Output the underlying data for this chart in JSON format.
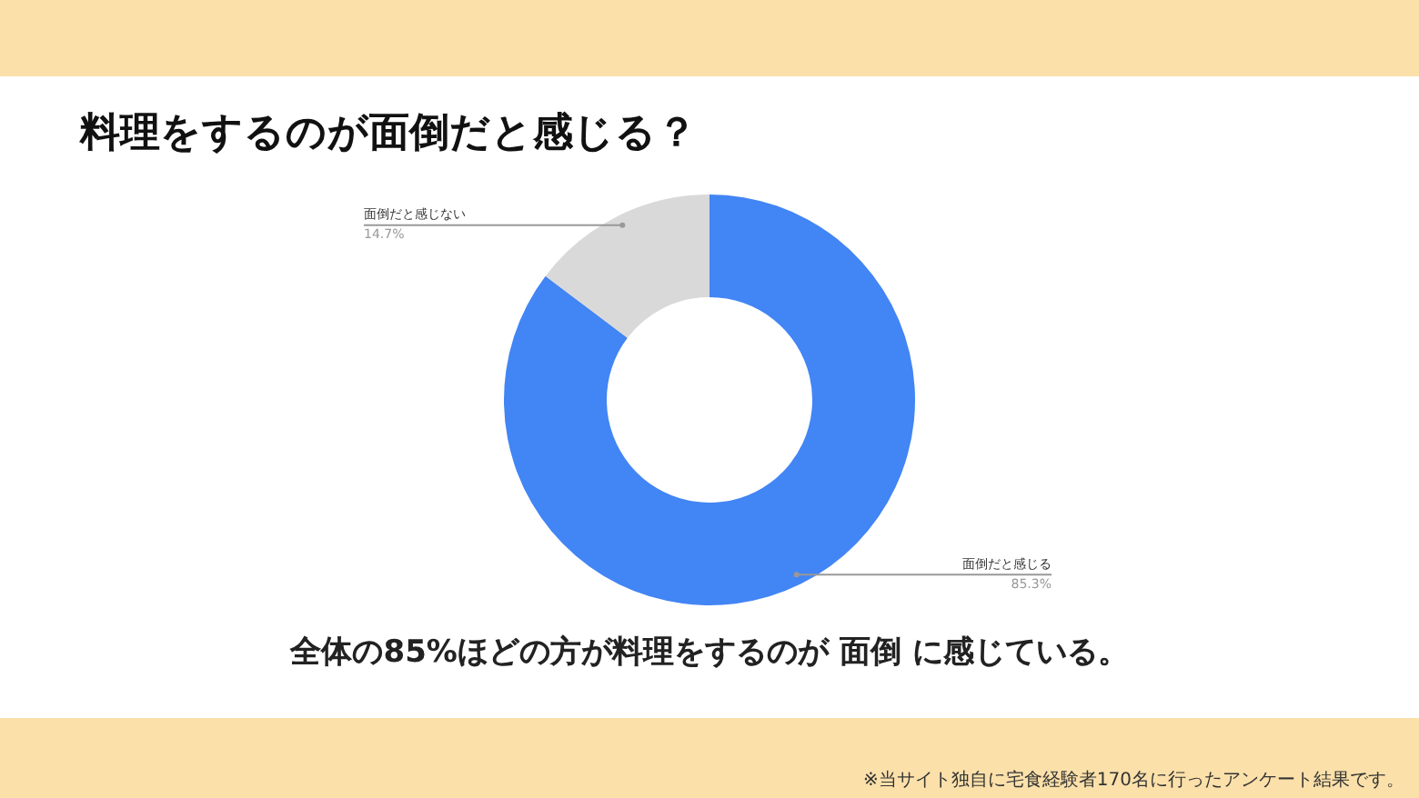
{
  "chart_data": {
    "type": "donut",
    "title": "料理をするのが面倒だと感じる？",
    "categories": [
      "面倒だと感じる",
      "面倒だと感じない"
    ],
    "values": [
      85.3,
      14.7
    ],
    "colors": [
      "#4285f4",
      "#d9d9d9"
    ],
    "value_labels": [
      "85.3%",
      "14.7%"
    ],
    "annotations": [
      "全体の85%ほどの方が料理をするのが 面倒 に感じている。",
      "※当サイト独自に宅食経験者170名に行ったアンケート結果です。"
    ]
  }
}
